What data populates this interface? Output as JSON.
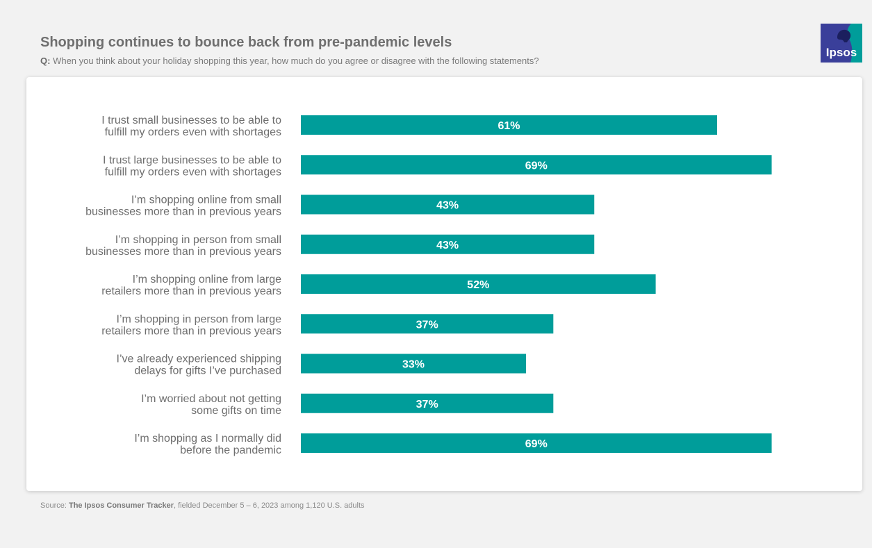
{
  "header": {
    "title": "Shopping continues to bounce back from pre-pandemic levels",
    "question_prefix": "Q:",
    "question": "When you think about your holiday shopping this year, how much do you agree or disagree with the following statements?"
  },
  "logo": {
    "text": "Ipsos",
    "colors": {
      "blue": "#3a3f9a",
      "teal": "#009d9a"
    }
  },
  "chart_data": {
    "type": "bar",
    "orientation": "horizontal",
    "title": "Shopping continues to bounce back from pre-pandemic levels",
    "xlabel": "",
    "ylabel": "",
    "xlim": [
      0,
      70
    ],
    "grid": false,
    "legend": "none",
    "bar_color": "#009d9a",
    "categories": [
      [
        "I trust small businesses to be able to",
        "fulfill my orders even with shortages"
      ],
      [
        "I trust large businesses to be able to",
        "fulfill my orders even with shortages"
      ],
      [
        "I’m shopping online from small",
        "businesses more than in previous years"
      ],
      [
        "I’m shopping in person from small",
        "businesses more than in previous years"
      ],
      [
        "I’m shopping online from large",
        "retailers more than in previous years"
      ],
      [
        "I’m shopping in person from large",
        "retailers more than in previous years"
      ],
      [
        "I’ve already experienced shipping",
        "delays for gifts I’ve purchased"
      ],
      [
        "I’m worried about not getting",
        "some gifts on time"
      ],
      [
        "I’m shopping as I normally did",
        "before the pandemic"
      ]
    ],
    "values": [
      61,
      69,
      43,
      43,
      52,
      37,
      33,
      37,
      69
    ],
    "value_labels": [
      "61%",
      "69%",
      "43%",
      "43%",
      "52%",
      "37%",
      "33%",
      "37%",
      "69%"
    ]
  },
  "footer": {
    "source_prefix": "Source:",
    "source_name": "The Ipsos Consumer Tracker",
    "source_rest": ", fielded December 5 – 6, 2023 among 1,120 U.S. adults"
  }
}
